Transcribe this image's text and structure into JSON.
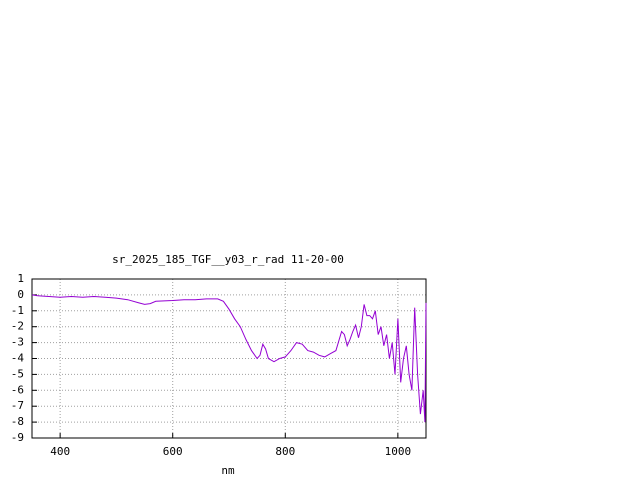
{
  "chart_data": {
    "type": "line",
    "title": "sr_2025_185_TGF__y03_r_rad 11-20-00",
    "xlabel": "nm",
    "color": "#9400d3",
    "x": [
      350,
      360,
      380,
      400,
      420,
      440,
      460,
      480,
      500,
      520,
      540,
      550,
      560,
      570,
      600,
      620,
      640,
      660,
      680,
      690,
      700,
      710,
      720,
      730,
      740,
      750,
      755,
      760,
      765,
      770,
      780,
      790,
      800,
      810,
      820,
      830,
      840,
      850,
      860,
      870,
      880,
      890,
      900,
      905,
      910,
      915,
      920,
      925,
      930,
      935,
      940,
      945,
      950,
      955,
      960,
      965,
      970,
      975,
      980,
      985,
      990,
      995,
      1000,
      1005,
      1010,
      1015,
      1020,
      1025,
      1030,
      1035,
      1040,
      1045,
      1048,
      1050
    ],
    "values": [
      0,
      -0.05,
      -0.1,
      -0.15,
      -0.1,
      -0.15,
      -0.1,
      -0.15,
      -0.2,
      -0.3,
      -0.5,
      -0.6,
      -0.55,
      -0.4,
      -0.35,
      -0.3,
      -0.3,
      -0.25,
      -0.25,
      -0.4,
      -0.9,
      -1.5,
      -2.0,
      -2.8,
      -3.5,
      -4.0,
      -3.8,
      -3.1,
      -3.4,
      -4.0,
      -4.2,
      -4.0,
      -3.9,
      -3.5,
      -3.0,
      -3.1,
      -3.5,
      -3.6,
      -3.8,
      -3.9,
      -3.7,
      -3.5,
      -2.3,
      -2.5,
      -3.2,
      -2.8,
      -2.3,
      -1.9,
      -2.7,
      -2.0,
      -0.6,
      -1.3,
      -1.3,
      -1.5,
      -1.0,
      -2.5,
      -2.0,
      -3.2,
      -2.5,
      -4.0,
      -3.0,
      -5.0,
      -1.5,
      -5.5,
      -4.0,
      -3.2,
      -5.0,
      -6.0,
      -0.8,
      -5.0,
      -7.5,
      -6.0,
      -8.0,
      -0.5
    ],
    "xlim": [
      350,
      1050
    ],
    "xticks": [
      400,
      600,
      800,
      1000
    ],
    "ylim": [
      -9,
      1
    ],
    "yticks": [
      1,
      0,
      -1,
      -2,
      -3,
      -4,
      -5,
      -6,
      -7,
      -8,
      -9
    ],
    "grid": true
  }
}
